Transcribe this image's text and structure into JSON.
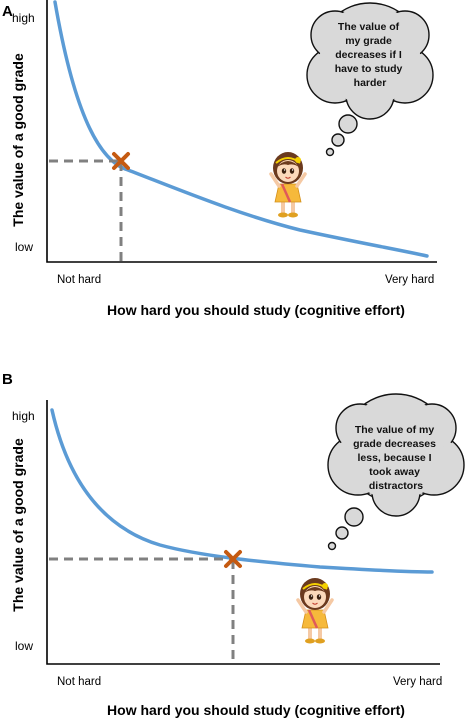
{
  "panels": [
    {
      "letter": "A",
      "y_label": "The value of a good grade",
      "y_high": "high",
      "y_low": "low",
      "x_start": "Not hard",
      "x_end": "Very hard",
      "x_label": "How hard you should study (cognitive effort)",
      "bubble_lines": [
        "The value of",
        "my grade",
        "decreases if I",
        "have to study",
        "harder"
      ],
      "curve_color": "#5b9bd5",
      "marker_color": "#c55a11"
    },
    {
      "letter": "B",
      "y_label": "The value of a good grade",
      "y_high": "high",
      "y_low": "low",
      "x_start": "Not hard",
      "x_end": "Very hard",
      "x_label": "How hard you should study (cognitive effort)",
      "bubble_lines": [
        "The value of my",
        "grade decreases",
        "less, because I",
        "took away",
        "distractors"
      ],
      "curve_color": "#5b9bd5",
      "marker_color": "#c55a11"
    }
  ]
}
